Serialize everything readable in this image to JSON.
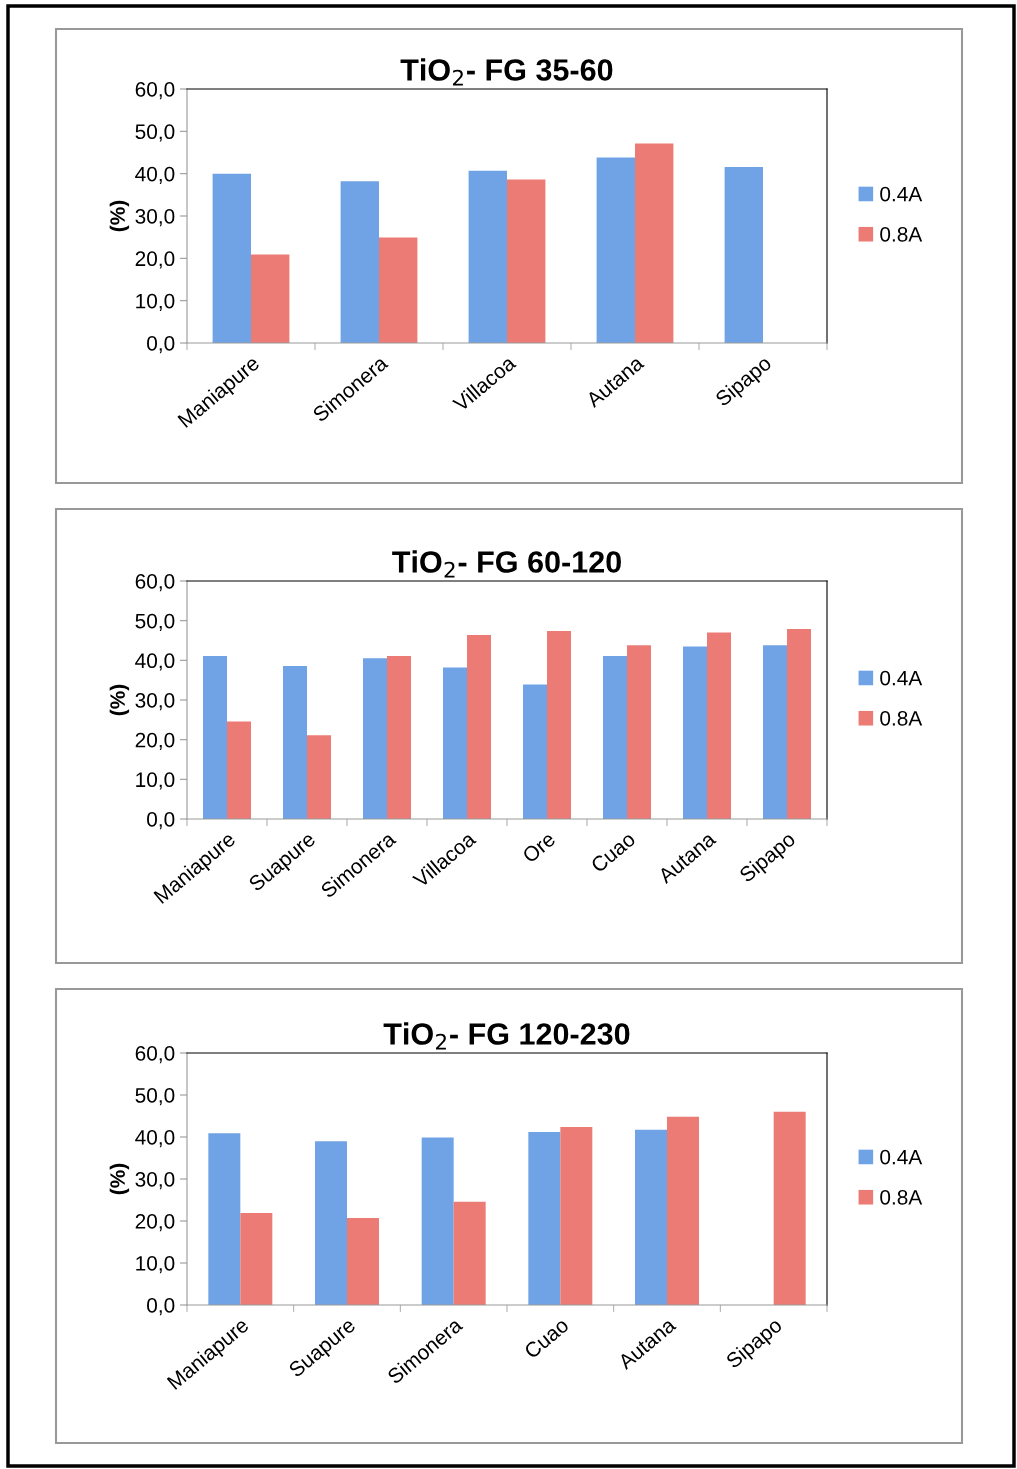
{
  "chart_data": [
    {
      "type": "bar",
      "title": "TiO$_{2}$- FG 35-60",
      "ylabel": "(%)",
      "categories": [
        "Maniapure",
        "Simonera",
        "Villacoa",
        "Autana",
        "Sipapo"
      ],
      "series": [
        {
          "name": "0.4A",
          "color": "#6fa3e6",
          "values": [
            40.0,
            38.2,
            40.7,
            43.8,
            41.6
          ]
        },
        {
          "name": "0.8A",
          "color": "#eb7b74",
          "values": [
            20.9,
            24.9,
            38.6,
            47.1,
            null
          ]
        }
      ],
      "ylim": [
        0,
        60
      ],
      "yticks": [
        {
          "value": 0,
          "label": "0,0"
        },
        {
          "value": 10,
          "label": "10,0"
        },
        {
          "value": 20,
          "label": "20,0"
        },
        {
          "value": 30,
          "label": "30,0"
        },
        {
          "value": 40,
          "label": "40,0"
        },
        {
          "value": 50,
          "label": "50,0"
        },
        {
          "value": 60,
          "label": "60,0"
        }
      ],
      "grid": false,
      "legend": "right"
    },
    {
      "type": "bar",
      "title": "TiO$_{2}$- FG 60-120",
      "ylabel": "(%)",
      "categories": [
        "Maniapure",
        "Suapure",
        "Simonera",
        "Villacoa",
        "Ore",
        "Cuao",
        "Autana",
        "Sipapo"
      ],
      "series": [
        {
          "name": "0.4A",
          "color": "#6fa3e6",
          "values": [
            41.1,
            38.6,
            40.5,
            38.2,
            33.9,
            41.1,
            43.5,
            43.8
          ]
        },
        {
          "name": "0.8A",
          "color": "#eb7b74",
          "values": [
            24.6,
            21.1,
            41.1,
            46.4,
            47.4,
            43.8,
            47.0,
            47.9
          ]
        }
      ],
      "ylim": [
        0,
        60
      ],
      "yticks": [
        {
          "value": 0,
          "label": "0,0"
        },
        {
          "value": 10,
          "label": "10,0"
        },
        {
          "value": 20,
          "label": "20,0"
        },
        {
          "value": 30,
          "label": "30,0"
        },
        {
          "value": 40,
          "label": "40,0"
        },
        {
          "value": 50,
          "label": "50,0"
        },
        {
          "value": 60,
          "label": "60,0"
        }
      ],
      "grid": false,
      "legend": "right"
    },
    {
      "type": "bar",
      "title": "TiO$_{2}$- FG 120-230",
      "ylabel": "(%)",
      "categories": [
        "Maniapure",
        "Suapure",
        "Simonera",
        "Cuao",
        "Autana",
        "Sipapo"
      ],
      "series": [
        {
          "name": "0.4A",
          "color": "#6fa3e6",
          "values": [
            40.9,
            39.0,
            39.9,
            41.2,
            41.7,
            null
          ]
        },
        {
          "name": "0.8A",
          "color": "#eb7b74",
          "values": [
            21.9,
            20.7,
            24.6,
            42.4,
            44.8,
            46.0
          ]
        }
      ],
      "ylim": [
        0,
        60
      ],
      "yticks": [
        {
          "value": 0,
          "label": "0,0"
        },
        {
          "value": 10,
          "label": "10,0"
        },
        {
          "value": 20,
          "label": "20,0"
        },
        {
          "value": 30,
          "label": "30,0"
        },
        {
          "value": 40,
          "label": "40,0"
        },
        {
          "value": 50,
          "label": "50,0"
        },
        {
          "value": 60,
          "label": "60,0"
        }
      ],
      "grid": false,
      "legend": "right"
    }
  ]
}
